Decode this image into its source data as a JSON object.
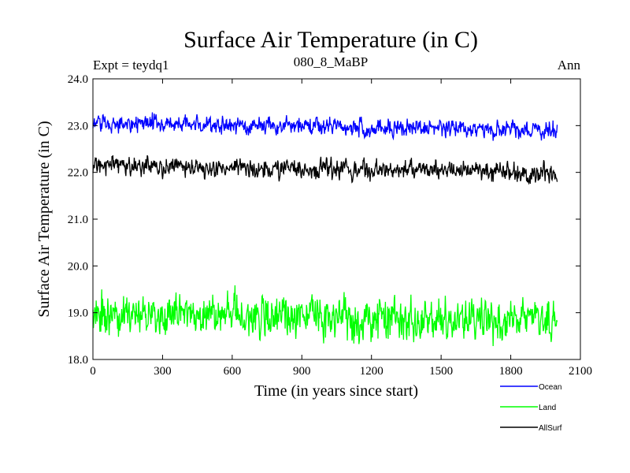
{
  "chart_data": {
    "type": "line",
    "title": "Surface Air Temperature (in C)",
    "subtitle_left": "Expt = teydq1",
    "subtitle_center": "080_8_MaBP",
    "subtitle_right": "Ann",
    "xlabel": "Time (in years since start)",
    "ylabel": "Surface Air Temperature (in C)",
    "xlim": [
      0,
      2100
    ],
    "ylim": [
      18.0,
      24.0
    ],
    "x_ticks": [
      "0",
      "300",
      "600",
      "900",
      "1200",
      "1500",
      "1800",
      "2100"
    ],
    "y_ticks": [
      "18.0",
      "19.0",
      "20.0",
      "21.0",
      "22.0",
      "23.0",
      "24.0"
    ],
    "x_range": [
      0,
      2000
    ],
    "series": [
      {
        "name": "Ocean",
        "color": "#0000ff",
        "start": 23.05,
        "end": 22.9,
        "noise": 0.11
      },
      {
        "name": "Land",
        "color": "#00ff00",
        "start": 18.95,
        "end": 18.8,
        "noise": 0.26
      },
      {
        "name": "AllSurf",
        "color": "#000000",
        "start": 22.15,
        "end": 22.0,
        "noise": 0.12
      }
    ],
    "legend": "bottom-right"
  }
}
